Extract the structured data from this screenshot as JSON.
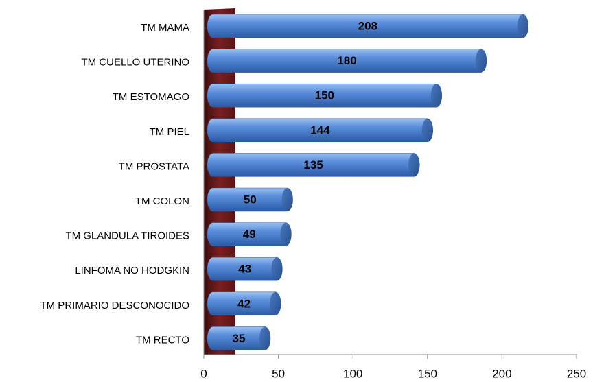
{
  "chart_data": {
    "type": "bar",
    "orientation": "horizontal",
    "categories": [
      "TM MAMA",
      "TM CUELLO UTERINO",
      "TM ESTOMAGO",
      "TM PIEL",
      "TM PROSTATA",
      "TM COLON",
      "TM GLANDULA TIROIDES",
      "LINFOMA NO HODGKIN",
      "TM PRIMARIO DESCONOCIDO",
      "TM RECTO"
    ],
    "values": [
      208,
      180,
      150,
      144,
      135,
      50,
      49,
      43,
      42,
      35
    ],
    "color": "#4f86d4",
    "xlim": [
      0,
      250
    ],
    "xticks": [
      0,
      50,
      100,
      150,
      200,
      250
    ]
  }
}
